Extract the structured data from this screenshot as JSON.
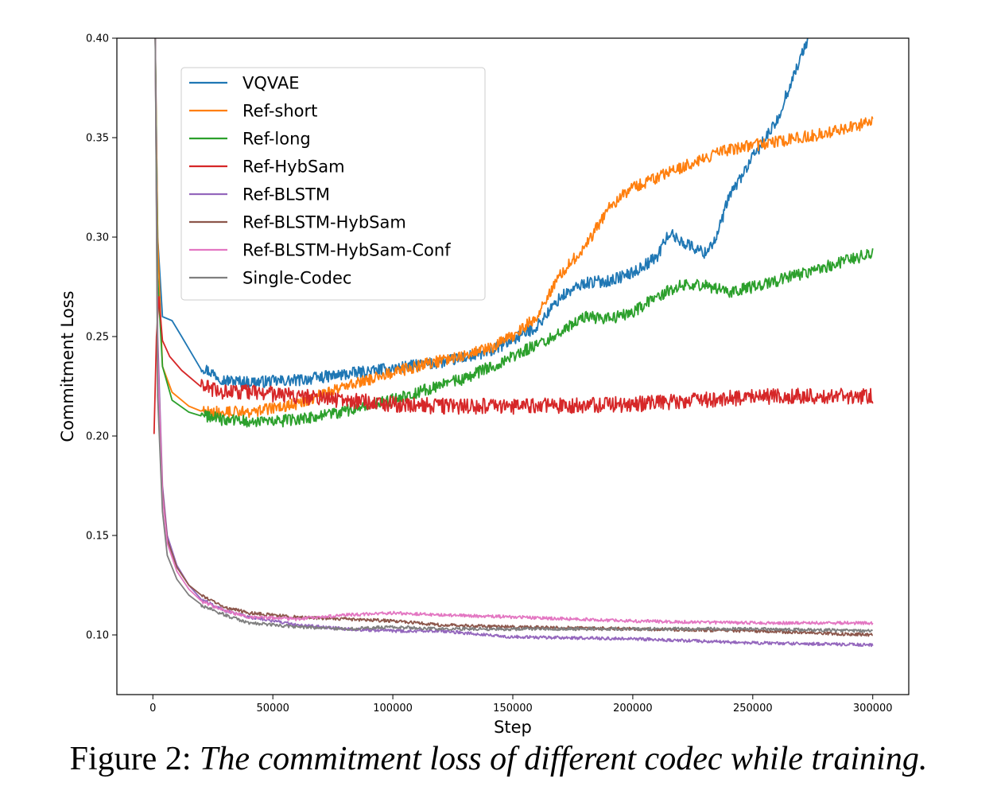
{
  "caption": {
    "prefix": "Figure 2: ",
    "text": "The commitment loss of different codec while training."
  },
  "chart_data": {
    "type": "line",
    "xlabel": "Step",
    "ylabel": "Commitment Loss",
    "xlim": [
      -15000,
      315000
    ],
    "ylim": [
      0.07,
      0.4
    ],
    "xticks": [
      0,
      50000,
      100000,
      150000,
      200000,
      250000,
      300000
    ],
    "yticks": [
      0.1,
      0.15,
      0.2,
      0.25,
      0.3,
      0.35,
      0.4
    ],
    "ytick_labels": [
      "0.10",
      "0.15",
      "0.20",
      "0.25",
      "0.30",
      "0.35",
      "0.40"
    ],
    "grid": false,
    "legend_position": "upper-left",
    "series": [
      {
        "name": "VQVAE",
        "color": "#1f77b4",
        "noise": 0.003,
        "x": [
          1000,
          2000,
          4000,
          8000,
          12000,
          20000,
          30000,
          40000,
          60000,
          80000,
          100000,
          120000,
          140000,
          160000,
          170000,
          180000,
          190000,
          200000,
          210000,
          215000,
          220000,
          230000,
          235000,
          240000,
          250000,
          260000,
          265000,
          270000,
          273000
        ],
        "y": [
          0.4,
          0.3,
          0.26,
          0.258,
          0.25,
          0.235,
          0.228,
          0.227,
          0.228,
          0.231,
          0.234,
          0.237,
          0.242,
          0.255,
          0.27,
          0.277,
          0.278,
          0.282,
          0.29,
          0.302,
          0.298,
          0.292,
          0.3,
          0.32,
          0.34,
          0.358,
          0.375,
          0.39,
          0.4
        ]
      },
      {
        "name": "Ref-short",
        "color": "#ff7f0e",
        "noise": 0.003,
        "x": [
          1000,
          2000,
          4000,
          8000,
          15000,
          25000,
          40000,
          60000,
          80000,
          100000,
          120000,
          140000,
          150000,
          160000,
          170000,
          180000,
          190000,
          200000,
          220000,
          240000,
          260000,
          280000,
          300000
        ],
        "y": [
          0.4,
          0.3,
          0.235,
          0.222,
          0.215,
          0.212,
          0.212,
          0.216,
          0.225,
          0.232,
          0.238,
          0.244,
          0.25,
          0.26,
          0.282,
          0.295,
          0.315,
          0.325,
          0.335,
          0.344,
          0.348,
          0.352,
          0.358
        ]
      },
      {
        "name": "Ref-long",
        "color": "#2ca02c",
        "noise": 0.003,
        "x": [
          1000,
          2000,
          4000,
          8000,
          15000,
          30000,
          50000,
          70000,
          90000,
          110000,
          130000,
          150000,
          170000,
          180000,
          190000,
          200000,
          210000,
          220000,
          230000,
          240000,
          260000,
          280000,
          300000
        ],
        "y": [
          0.4,
          0.28,
          0.235,
          0.218,
          0.212,
          0.208,
          0.207,
          0.21,
          0.215,
          0.222,
          0.229,
          0.24,
          0.252,
          0.26,
          0.259,
          0.262,
          0.27,
          0.276,
          0.276,
          0.272,
          0.278,
          0.285,
          0.292
        ]
      },
      {
        "name": "Ref-HybSam",
        "color": "#d62728",
        "noise": 0.004,
        "x": [
          500,
          1500,
          2500,
          4000,
          7000,
          12000,
          20000,
          30000,
          40000,
          60000,
          80000,
          100000,
          120000,
          140000,
          160000,
          200000,
          240000,
          260000,
          300000
        ],
        "y": [
          0.201,
          0.25,
          0.27,
          0.248,
          0.24,
          0.233,
          0.225,
          0.222,
          0.222,
          0.22,
          0.218,
          0.216,
          0.215,
          0.215,
          0.215,
          0.216,
          0.219,
          0.22,
          0.22
        ]
      },
      {
        "name": "Ref-BLSTM",
        "color": "#9467bd",
        "noise": 0.0008,
        "x": [
          1000,
          2000,
          4000,
          6000,
          10000,
          15000,
          20000,
          30000,
          40000,
          60000,
          80000,
          100000,
          120000,
          150000,
          200000,
          250000,
          300000
        ],
        "y": [
          0.4,
          0.25,
          0.175,
          0.15,
          0.135,
          0.125,
          0.118,
          0.112,
          0.109,
          0.105,
          0.103,
          0.102,
          0.102,
          0.099,
          0.098,
          0.096,
          0.095
        ]
      },
      {
        "name": "Ref-BLSTM-HybSam",
        "color": "#8c564b",
        "noise": 0.0008,
        "x": [
          1000,
          2000,
          4000,
          6000,
          10000,
          15000,
          20000,
          30000,
          40000,
          60000,
          80000,
          100000,
          120000,
          150000,
          200000,
          250000,
          300000
        ],
        "y": [
          0.4,
          0.24,
          0.172,
          0.148,
          0.134,
          0.125,
          0.12,
          0.114,
          0.111,
          0.109,
          0.108,
          0.107,
          0.105,
          0.104,
          0.103,
          0.102,
          0.1
        ]
      },
      {
        "name": "Ref-BLSTM-HybSam-Conf",
        "color": "#e377c2",
        "noise": 0.0008,
        "x": [
          1000,
          2000,
          4000,
          6000,
          10000,
          15000,
          20000,
          30000,
          40000,
          60000,
          80000,
          100000,
          120000,
          150000,
          200000,
          250000,
          300000
        ],
        "y": [
          0.4,
          0.24,
          0.17,
          0.146,
          0.132,
          0.123,
          0.117,
          0.112,
          0.109,
          0.108,
          0.11,
          0.111,
          0.11,
          0.109,
          0.107,
          0.106,
          0.106
        ]
      },
      {
        "name": "Single-Codec",
        "color": "#7f7f7f",
        "noise": 0.0008,
        "x": [
          1000,
          2000,
          4000,
          6000,
          10000,
          15000,
          20000,
          30000,
          40000,
          60000,
          80000,
          100000,
          120000,
          150000,
          200000,
          250000,
          300000
        ],
        "y": [
          0.4,
          0.22,
          0.162,
          0.14,
          0.128,
          0.12,
          0.115,
          0.11,
          0.106,
          0.104,
          0.103,
          0.104,
          0.103,
          0.103,
          0.103,
          0.103,
          0.102
        ]
      }
    ]
  }
}
